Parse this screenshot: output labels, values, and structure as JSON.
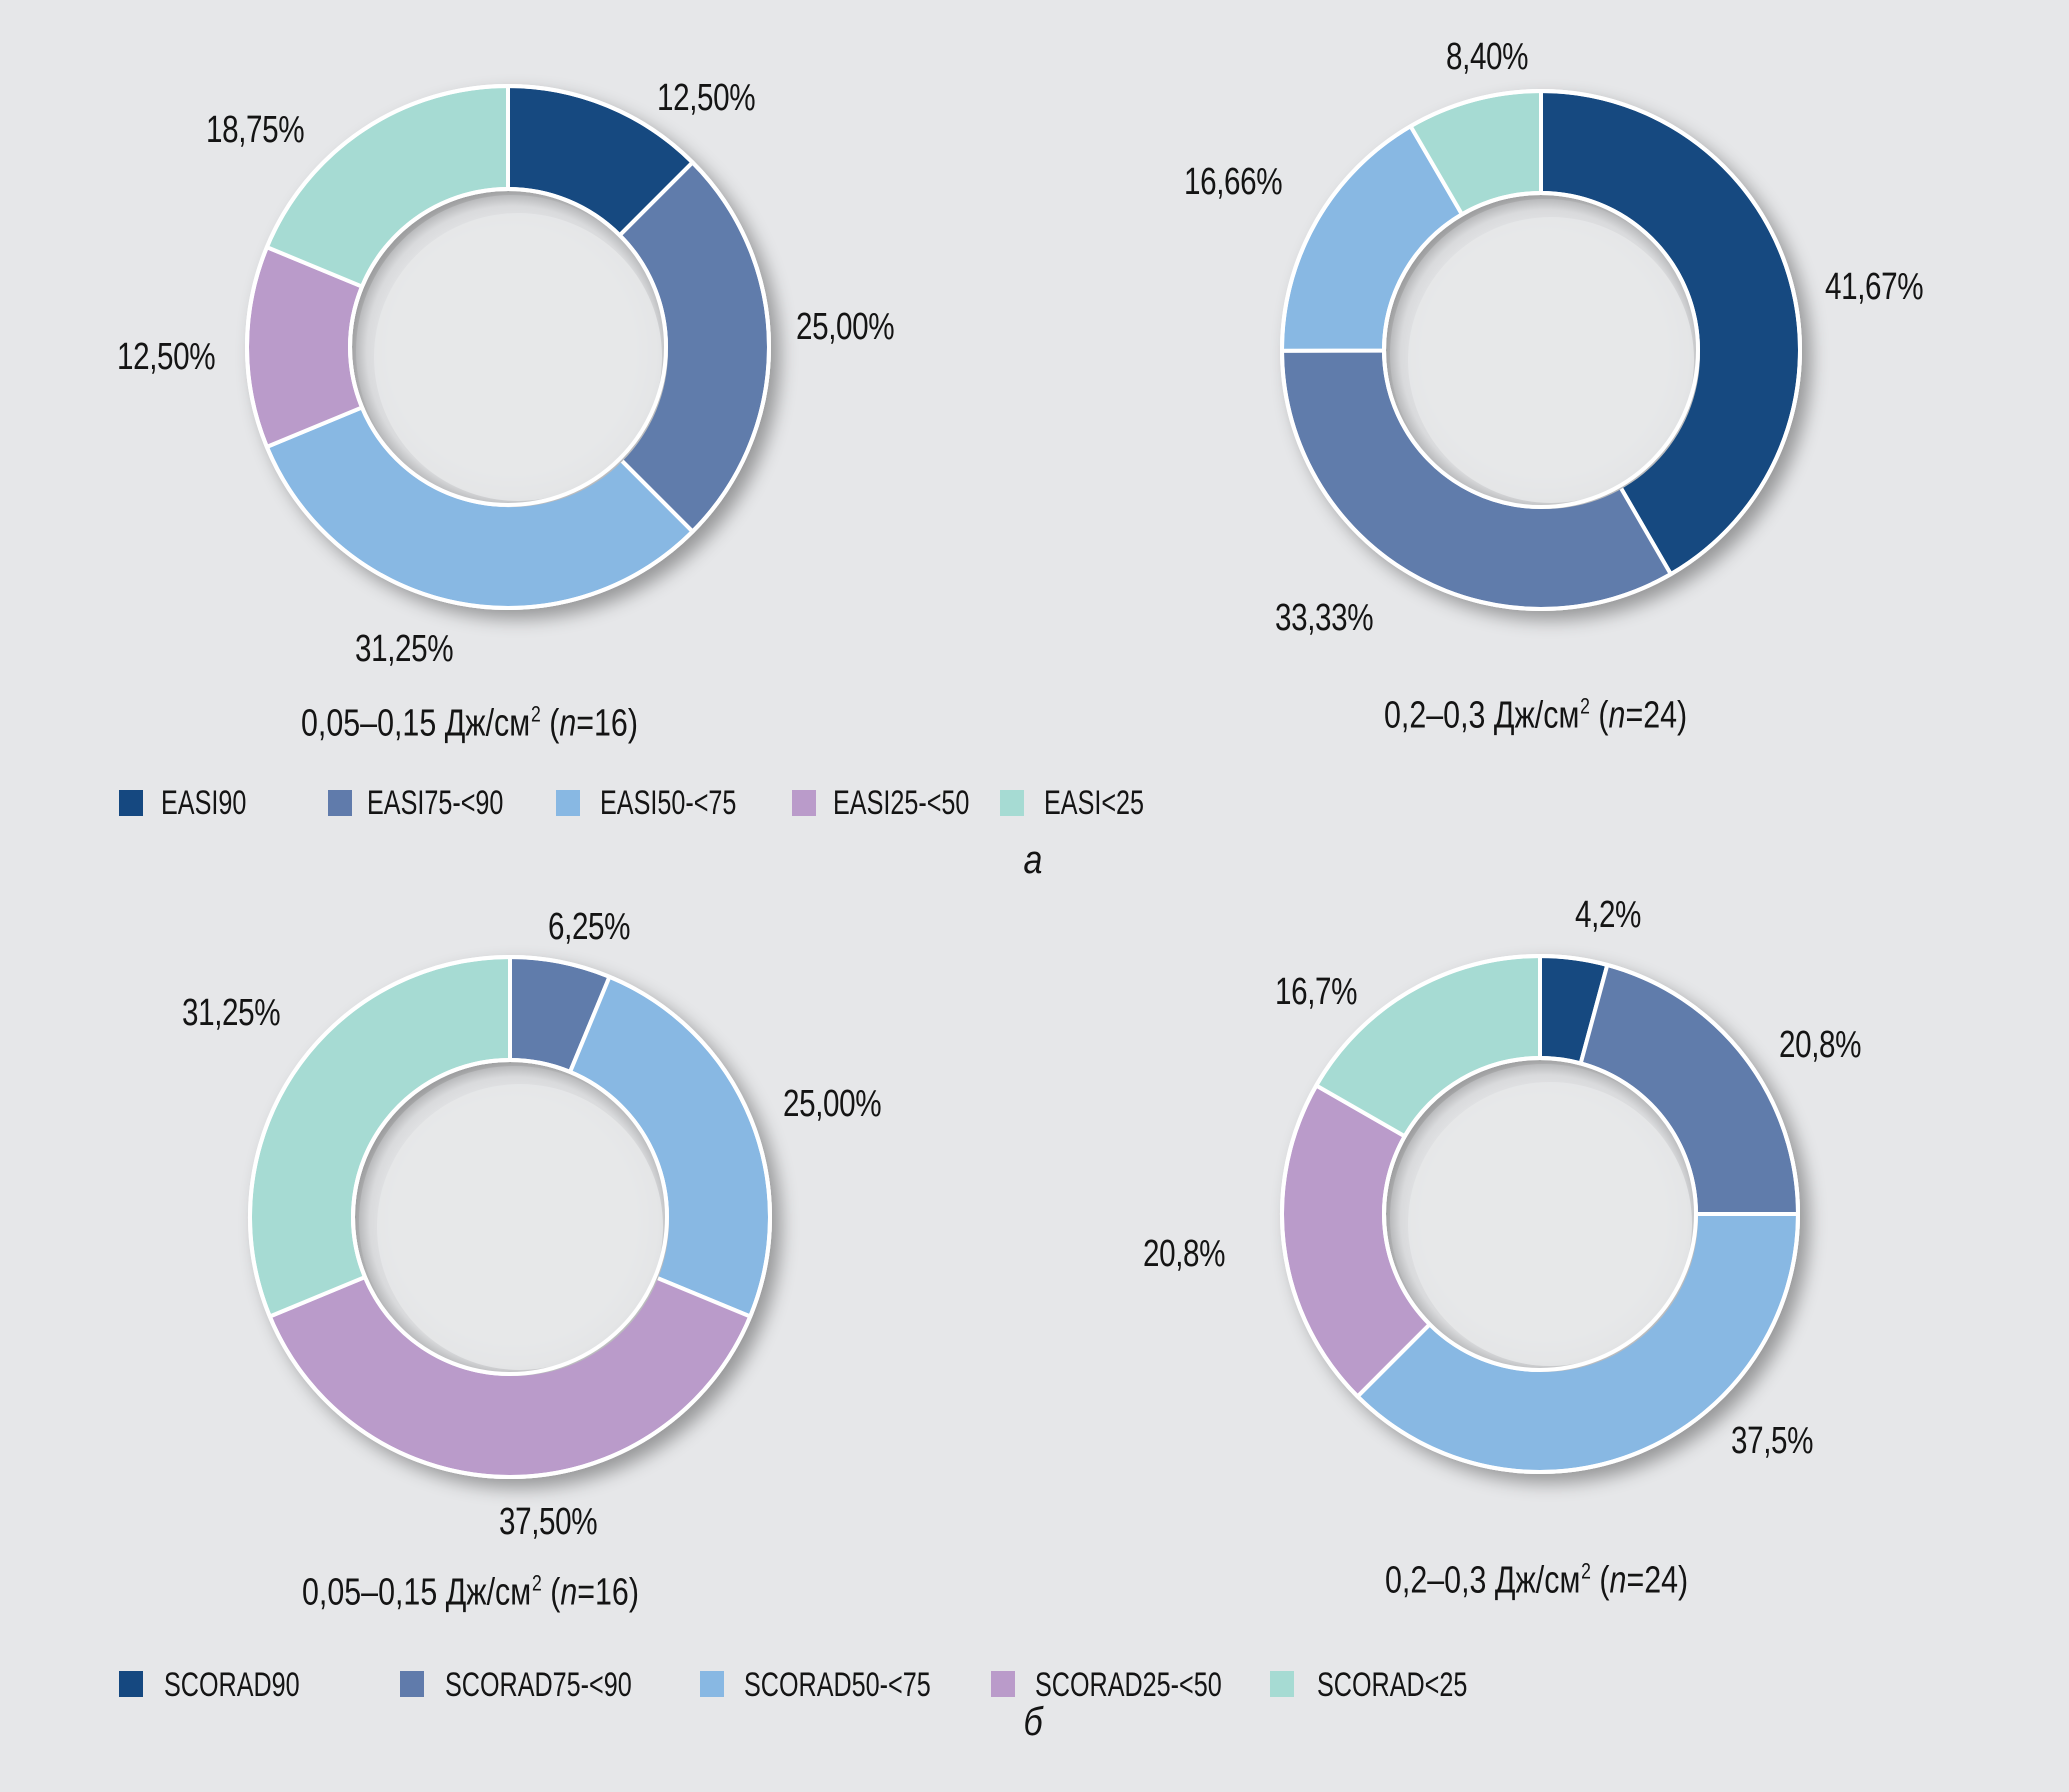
{
  "colors": {
    "background": "#e6e7e9",
    "c90": "#154880",
    "c75": "#607bab",
    "c50": "#88b8e3",
    "c25": "#ba9bca",
    "clt25": "#a6dbd3",
    "separator": "#ffffff"
  },
  "panels": [
    {
      "letter": "а",
      "legend": [
        {
          "label": "EASI90",
          "color": "#154880"
        },
        {
          "label": "EASI75-<90",
          "color": "#607bab"
        },
        {
          "label": "EASI50-<75",
          "color": "#88b8e3"
        },
        {
          "label": "EASI25-<50",
          "color": "#ba9bca"
        },
        {
          "label": "EASI<25",
          "color": "#a6dbd3"
        }
      ]
    },
    {
      "letter": "б",
      "legend": [
        {
          "label": "SCORAD90",
          "color": "#154880"
        },
        {
          "label": "SCORAD75-<90",
          "color": "#607bab"
        },
        {
          "label": "SCORAD50-<75",
          "color": "#88b8e3"
        },
        {
          "label": "SCORAD25-<50",
          "color": "#ba9bca"
        },
        {
          "label": "SCORAD<25",
          "color": "#a6dbd3"
        }
      ]
    }
  ],
  "chart_data": [
    {
      "type": "pie",
      "variant": "donut",
      "panel": "а",
      "title": "0,05–0,15 Дж/см² (n=16)",
      "subtitle_parts": {
        "pre": "0,05–0,15 Дж/см",
        "sup": "2",
        "mid": " (",
        "n": "n",
        "post": "=16)"
      },
      "start": "12 o'clock",
      "direction": "clockwise",
      "slices": [
        {
          "category": "EASI90",
          "value": 12.5,
          "label": "12,50%",
          "color": "#154880"
        },
        {
          "category": "EASI75-<90",
          "value": 25.0,
          "label": "25,00%",
          "color": "#607bab"
        },
        {
          "category": "EASI50-<75",
          "value": 31.25,
          "label": "31,25%",
          "color": "#88b8e3"
        },
        {
          "category": "EASI25-<50",
          "value": 12.5,
          "label": "12,50%",
          "color": "#ba9bca"
        },
        {
          "category": "EASI<25",
          "value": 18.75,
          "label": "18,75%",
          "color": "#a6dbd3"
        }
      ]
    },
    {
      "type": "pie",
      "variant": "donut",
      "panel": "а",
      "title": "0,2–0,3 Дж/см² (n=24)",
      "subtitle_parts": {
        "pre": "0,2–0,3 Дж/см",
        "sup": "2",
        "mid": " (",
        "n": "n",
        "post": "=24)"
      },
      "start": "12 o'clock",
      "direction": "clockwise",
      "slices": [
        {
          "category": "EASI90",
          "value": 41.67,
          "label": "41,67%",
          "color": "#154880"
        },
        {
          "category": "EASI75-<90",
          "value": 33.33,
          "label": "33,33%",
          "color": "#607bab"
        },
        {
          "category": "EASI50-<75",
          "value": 16.66,
          "label": "16,66%",
          "color": "#88b8e3"
        },
        {
          "category": "EASI<25",
          "value": 8.4,
          "label": "8,40%",
          "color": "#a6dbd3"
        }
      ]
    },
    {
      "type": "pie",
      "variant": "donut",
      "panel": "б",
      "title": "0,05–0,15 Дж/см² (n=16)",
      "subtitle_parts": {
        "pre": "0,05–0,15 Дж/см",
        "sup": "2",
        "mid": " (",
        "n": "n",
        "post": "=16)"
      },
      "start": "12 o'clock",
      "direction": "clockwise",
      "slices": [
        {
          "category": "SCORAD75-<90",
          "value": 6.25,
          "label": "6,25%",
          "color": "#607bab"
        },
        {
          "category": "SCORAD50-<75",
          "value": 25.0,
          "label": "25,00%",
          "color": "#88b8e3"
        },
        {
          "category": "SCORAD25-<50",
          "value": 37.5,
          "label": "37,50%",
          "color": "#ba9bca"
        },
        {
          "category": "SCORAD<25",
          "value": 31.25,
          "label": "31,25%",
          "color": "#a6dbd3"
        }
      ]
    },
    {
      "type": "pie",
      "variant": "donut",
      "panel": "б",
      "title": "0,2–0,3 Дж/см² (n=24)",
      "subtitle_parts": {
        "pre": "0,2–0,3 Дж/см",
        "sup": "2",
        "mid": " (",
        "n": "n",
        "post": "=24)"
      },
      "start": "12 o'clock",
      "direction": "clockwise",
      "slices": [
        {
          "category": "SCORAD90",
          "value": 4.2,
          "label": "4,2%",
          "color": "#154880"
        },
        {
          "category": "SCORAD75-<90",
          "value": 20.8,
          "label": "20,8%",
          "color": "#607bab"
        },
        {
          "category": "SCORAD50-<75",
          "value": 37.5,
          "label": "37,5%",
          "color": "#88b8e3"
        },
        {
          "category": "SCORAD25-<50",
          "value": 20.8,
          "label": "20,8%",
          "color": "#ba9bca"
        },
        {
          "category": "SCORAD<25",
          "value": 16.7,
          "label": "16,7%",
          "color": "#a6dbd3"
        }
      ]
    }
  ]
}
